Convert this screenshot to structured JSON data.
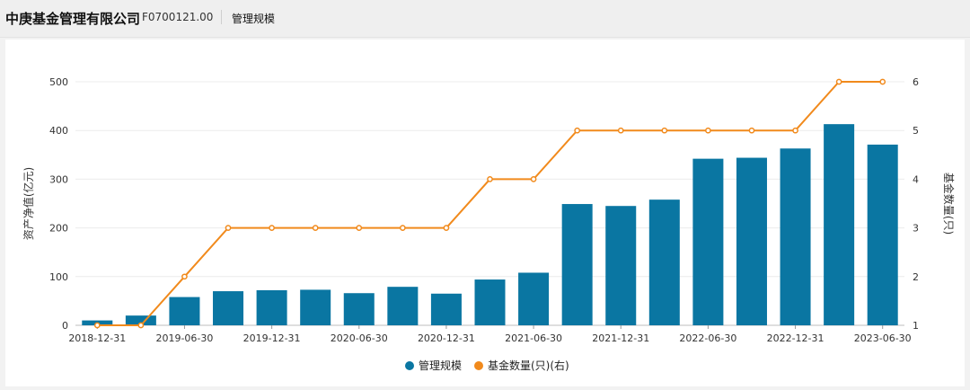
{
  "header": {
    "company": "中庚基金管理有限公司",
    "code": "F0700121.00",
    "tab": "管理规模"
  },
  "chart_data": {
    "type": "bar",
    "x_tick_labels": [
      "2018-12-31",
      "2019-06-30",
      "2019-12-31",
      "2020-06-30",
      "2020-12-31",
      "2021-06-30",
      "2021-12-31",
      "2022-06-30",
      "2022-12-31",
      "2023-06-30"
    ],
    "y_left_label": "资产净值(亿元)",
    "y_right_label": "基金数量(只)",
    "y_left_ticks": [
      0,
      100,
      200,
      300,
      400,
      500
    ],
    "y_right_ticks": [
      1,
      2,
      3,
      4,
      5,
      6
    ],
    "y_left_lim": [
      0,
      500
    ],
    "y_right_lim": [
      1,
      6
    ],
    "grid": true,
    "legend_position": "bottom",
    "series": [
      {
        "name": "管理规模",
        "type": "bar",
        "axis": "left",
        "color": "#0a76a2",
        "values": [
          10,
          20,
          58,
          70,
          72,
          73,
          66,
          79,
          65,
          94,
          108,
          249,
          245,
          258,
          342,
          344,
          363,
          413,
          371
        ]
      },
      {
        "name": "基金数量(只)(右)",
        "type": "line",
        "axis": "right",
        "color": "#f18a1c",
        "values": [
          1,
          1,
          2,
          3,
          3,
          3,
          3,
          3,
          3,
          4,
          4,
          5,
          5,
          5,
          5,
          5,
          5,
          6,
          6
        ]
      }
    ]
  }
}
